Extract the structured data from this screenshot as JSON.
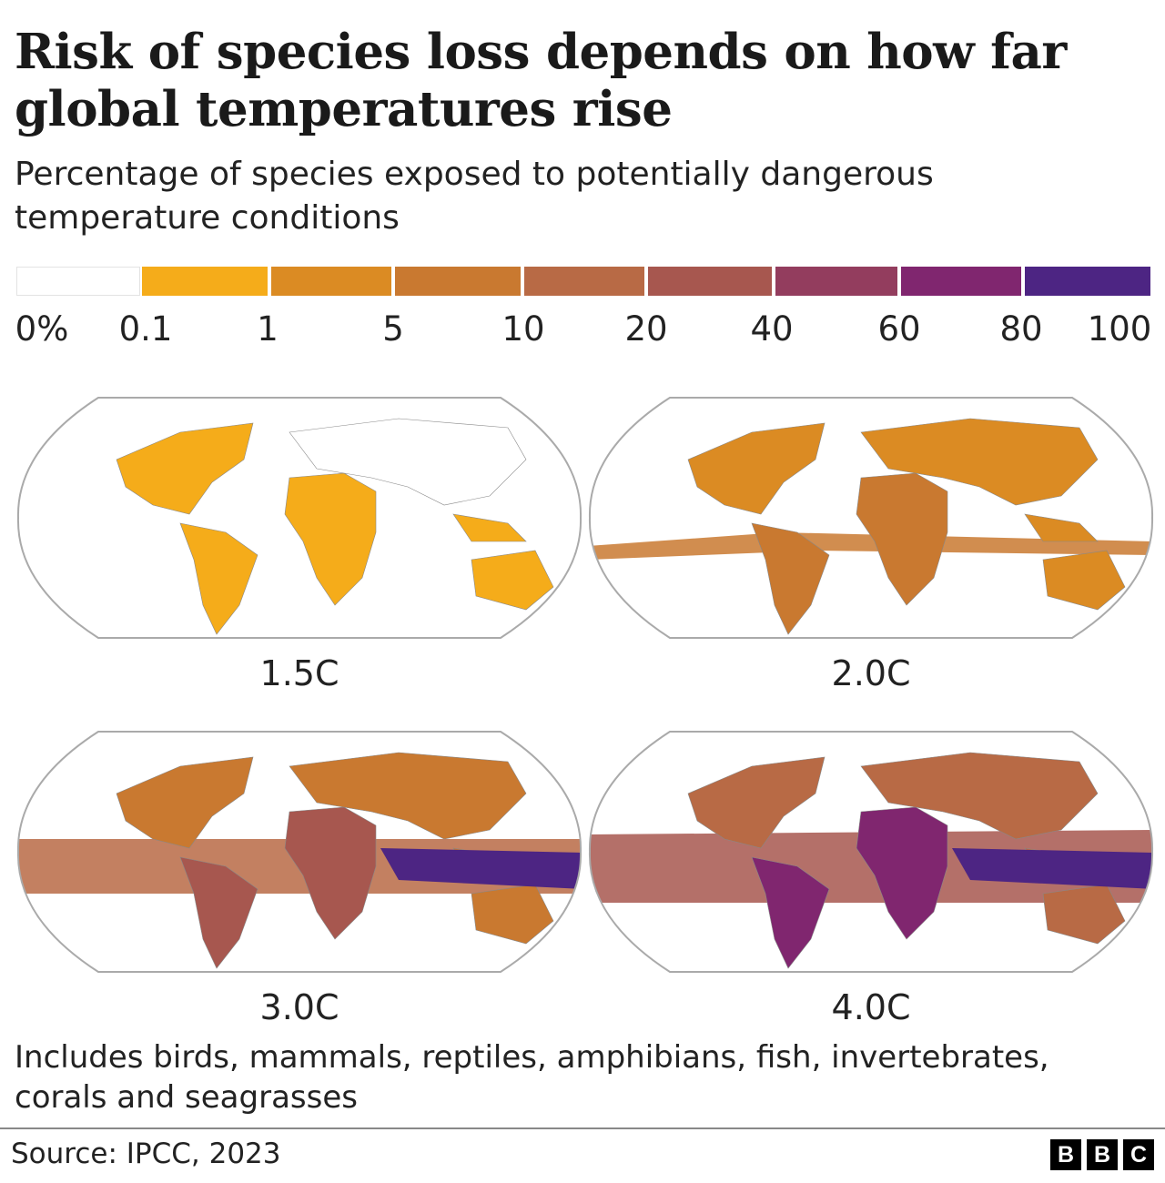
{
  "title": "Risk of species loss depends on how far global temperatures rise",
  "subtitle": "Percentage of species exposed to potentially dangerous temperature conditions",
  "legend": {
    "labels": [
      "0%",
      "0.1",
      "1",
      "5",
      "10",
      "20",
      "40",
      "60",
      "80",
      "100"
    ],
    "colors": [
      "#ffffff",
      "#f5ac1a",
      "#db8b23",
      "#c97930",
      "#b86a45",
      "#a7574f",
      "#933d5e",
      "#80266f",
      "#4d2583"
    ]
  },
  "maps": [
    {
      "label": "1.5C"
    },
    {
      "label": "2.0C"
    },
    {
      "label": "3.0C"
    },
    {
      "label": "4.0C"
    }
  ],
  "note": "Includes birds, mammals, reptiles, amphibians, fish, invertebrates, corals and seagrasses",
  "source": "Source: IPCC, 2023",
  "logo": [
    "B",
    "B",
    "C"
  ]
}
